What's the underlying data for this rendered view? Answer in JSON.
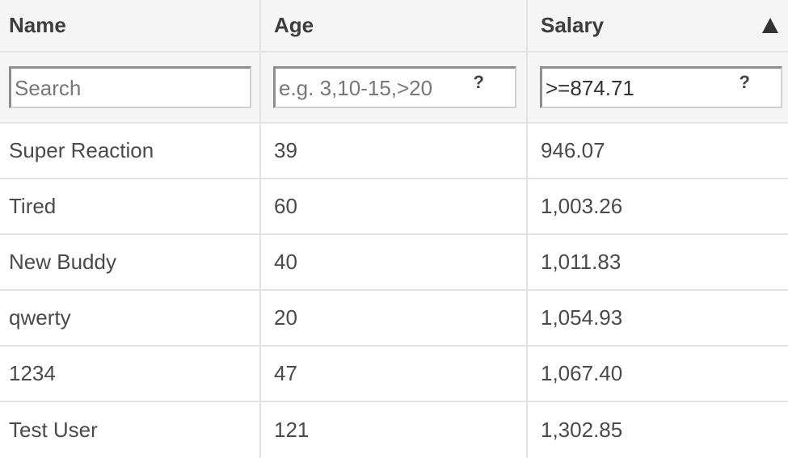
{
  "header": {
    "name": "Name",
    "age": "Age",
    "salary": "Salary",
    "sort_icon": "triangle-up-icon"
  },
  "filters": {
    "name_placeholder": "Search",
    "name_value": "",
    "age_placeholder": "e.g. 3,10-15,>20",
    "age_value": "",
    "salary_value": ">=874.71",
    "help_label": "?"
  },
  "rows": [
    {
      "name": "Super Reaction",
      "age": "39",
      "salary": "946.07"
    },
    {
      "name": "Tired",
      "age": "60",
      "salary": "1,003.26"
    },
    {
      "name": "New Buddy",
      "age": "40",
      "salary": "1,011.83"
    },
    {
      "name": "qwerty",
      "age": "20",
      "salary": "1,054.93"
    },
    {
      "name": "1234",
      "age": "47",
      "salary": "1,067.40"
    },
    {
      "name": "Test User",
      "age": "121",
      "salary": "1,302.85"
    }
  ]
}
